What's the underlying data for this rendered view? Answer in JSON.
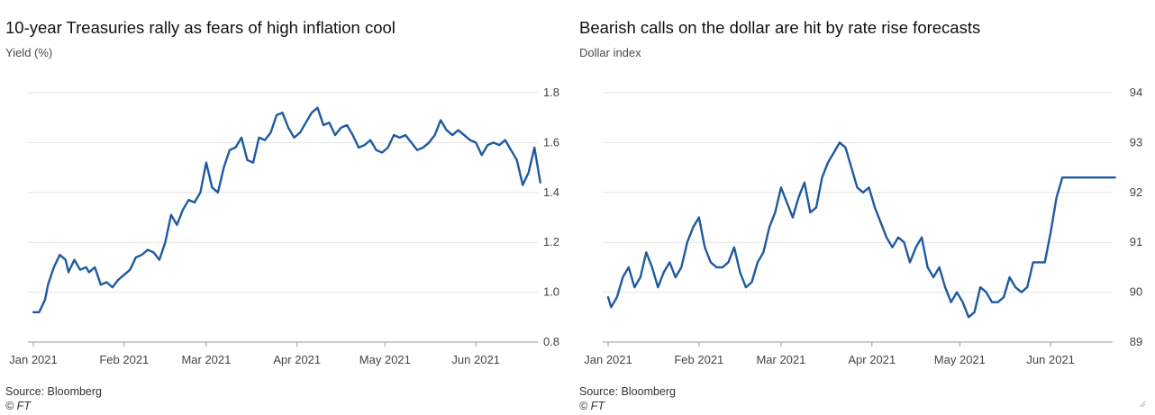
{
  "chart_data": [
    {
      "type": "line",
      "title": "10-year Treasuries rally as fears of high inflation cool",
      "ylabel": "Yield (%)",
      "ylim": [
        0.8,
        1.8
      ],
      "yticks": [
        "1.8",
        "1.6",
        "1.4",
        "1.2",
        "1.0",
        "0.8"
      ],
      "ytick_values": [
        1.8,
        1.6,
        1.4,
        1.2,
        1.0,
        0.8
      ],
      "xlim": [
        "2021-01-01",
        "2021-06-24"
      ],
      "xticks": [
        "Jan 2021",
        "Feb 2021",
        "Mar 2021",
        "Apr 2021",
        "May 2021",
        "Jun 2021"
      ],
      "xtick_dates": [
        "2021-01-01",
        "2021-02-01",
        "2021-03-01",
        "2021-04-01",
        "2021-05-01",
        "2021-06-01"
      ],
      "grid": true,
      "color": "#1f5aa0",
      "series": [
        {
          "x": [
            "2021-01-01",
            "2021-01-03",
            "2021-01-05",
            "2021-01-06",
            "2021-01-08",
            "2021-01-10",
            "2021-01-12",
            "2021-01-13",
            "2021-01-15",
            "2021-01-17",
            "2021-01-19",
            "2021-01-20",
            "2021-01-22",
            "2021-01-24",
            "2021-01-26",
            "2021-01-28",
            "2021-01-30",
            "2021-02-01",
            "2021-02-03",
            "2021-02-05",
            "2021-02-07",
            "2021-02-09",
            "2021-02-11",
            "2021-02-13",
            "2021-02-15",
            "2021-02-17",
            "2021-02-19",
            "2021-02-21",
            "2021-02-23",
            "2021-02-25",
            "2021-02-27",
            "2021-03-01",
            "2021-03-03",
            "2021-03-05",
            "2021-03-07",
            "2021-03-09",
            "2021-03-11",
            "2021-03-13",
            "2021-03-15",
            "2021-03-17",
            "2021-03-19",
            "2021-03-21",
            "2021-03-23",
            "2021-03-25",
            "2021-03-27",
            "2021-03-29",
            "2021-03-31",
            "2021-04-02",
            "2021-04-04",
            "2021-04-06",
            "2021-04-08",
            "2021-04-10",
            "2021-04-12",
            "2021-04-14",
            "2021-04-16",
            "2021-04-18",
            "2021-04-20",
            "2021-04-22",
            "2021-04-24",
            "2021-04-26",
            "2021-04-28",
            "2021-04-30",
            "2021-05-02",
            "2021-05-04",
            "2021-05-06",
            "2021-05-08",
            "2021-05-10",
            "2021-05-12",
            "2021-05-14",
            "2021-05-16",
            "2021-05-18",
            "2021-05-20",
            "2021-05-22",
            "2021-05-24",
            "2021-05-26",
            "2021-05-28",
            "2021-05-30",
            "2021-06-01",
            "2021-06-03",
            "2021-06-05",
            "2021-06-07",
            "2021-06-09",
            "2021-06-11",
            "2021-06-13",
            "2021-06-15",
            "2021-06-17",
            "2021-06-19",
            "2021-06-21",
            "2021-06-23"
          ],
          "values": [
            0.92,
            0.92,
            0.97,
            1.03,
            1.1,
            1.15,
            1.13,
            1.08,
            1.13,
            1.09,
            1.1,
            1.08,
            1.1,
            1.03,
            1.04,
            1.02,
            1.05,
            1.07,
            1.09,
            1.14,
            1.15,
            1.17,
            1.16,
            1.13,
            1.2,
            1.31,
            1.27,
            1.33,
            1.37,
            1.36,
            1.4,
            1.52,
            1.42,
            1.4,
            1.5,
            1.57,
            1.58,
            1.62,
            1.53,
            1.52,
            1.62,
            1.61,
            1.64,
            1.71,
            1.72,
            1.66,
            1.62,
            1.64,
            1.68,
            1.72,
            1.74,
            1.67,
            1.68,
            1.63,
            1.66,
            1.67,
            1.63,
            1.58,
            1.59,
            1.61,
            1.57,
            1.56,
            1.58,
            1.63,
            1.62,
            1.63,
            1.6,
            1.57,
            1.58,
            1.6,
            1.63,
            1.69,
            1.65,
            1.63,
            1.65,
            1.63,
            1.61,
            1.6,
            1.55,
            1.59,
            1.6,
            1.59,
            1.61,
            1.57,
            1.53,
            1.43,
            1.48,
            1.58,
            1.44
          ]
        }
      ],
      "source": "Source: Bloomberg",
      "credit": "© FT"
    },
    {
      "type": "line",
      "title": "Bearish calls on the dollar are hit by rate rise forecasts",
      "ylabel": "Dollar index",
      "ylim": [
        89,
        94
      ],
      "yticks": [
        "94",
        "93",
        "92",
        "91",
        "90",
        "89"
      ],
      "ytick_values": [
        94,
        93,
        92,
        91,
        90,
        89
      ],
      "xlim": [
        "2021-01-01",
        "2021-06-24"
      ],
      "xticks": [
        "Jan 2021",
        "Feb 2021",
        "Mar 2021",
        "Apr 2021",
        "May 2021",
        "Jun 2021"
      ],
      "xtick_dates": [
        "2021-01-01",
        "2021-02-01",
        "2021-03-01",
        "2021-04-01",
        "2021-05-01",
        "2021-06-01"
      ],
      "grid": true,
      "color": "#1f5aa0",
      "series": [
        {
          "x": [
            "2021-01-01",
            "2021-01-02",
            "2021-01-04",
            "2021-01-06",
            "2021-01-08",
            "2021-01-10",
            "2021-01-12",
            "2021-01-14",
            "2021-01-16",
            "2021-01-18",
            "2021-01-20",
            "2021-01-22",
            "2021-01-24",
            "2021-01-26",
            "2021-01-28",
            "2021-01-30",
            "2021-02-01",
            "2021-02-03",
            "2021-02-05",
            "2021-02-07",
            "2021-02-09",
            "2021-02-11",
            "2021-02-13",
            "2021-02-15",
            "2021-02-17",
            "2021-02-19",
            "2021-02-21",
            "2021-02-23",
            "2021-02-25",
            "2021-02-27",
            "2021-03-01",
            "2021-03-03",
            "2021-03-05",
            "2021-03-07",
            "2021-03-09",
            "2021-03-11",
            "2021-03-13",
            "2021-03-15",
            "2021-03-17",
            "2021-03-19",
            "2021-03-21",
            "2021-03-23",
            "2021-03-25",
            "2021-03-27",
            "2021-03-29",
            "2021-03-31",
            "2021-04-02",
            "2021-04-04",
            "2021-04-06",
            "2021-04-08",
            "2021-04-10",
            "2021-04-12",
            "2021-04-14",
            "2021-04-16",
            "2021-04-18",
            "2021-04-20",
            "2021-04-22",
            "2021-04-24",
            "2021-04-26",
            "2021-04-28",
            "2021-04-30",
            "2021-05-02",
            "2021-05-04",
            "2021-05-06",
            "2021-05-08",
            "2021-05-10",
            "2021-05-12",
            "2021-05-14",
            "2021-05-16",
            "2021-05-18",
            "2021-05-20",
            "2021-05-22",
            "2021-05-24",
            "2021-05-26",
            "2021-05-28",
            "2021-05-30",
            "2021-06-01",
            "2021-06-03",
            "2021-06-05",
            "2021-06-07",
            "2021-06-09",
            "2021-06-11",
            "2021-06-13",
            "2021-06-15",
            "2021-06-17",
            "2021-06-19",
            "2021-06-21",
            "2021-06-23"
          ],
          "values": [
            89.9,
            89.7,
            89.9,
            90.3,
            90.5,
            90.1,
            90.3,
            90.8,
            90.5,
            90.1,
            90.4,
            90.6,
            90.3,
            90.5,
            91.0,
            91.3,
            91.5,
            90.9,
            90.6,
            90.5,
            90.5,
            90.6,
            90.9,
            90.4,
            90.1,
            90.2,
            90.6,
            90.8,
            91.3,
            91.6,
            92.1,
            91.8,
            91.5,
            91.9,
            92.2,
            91.6,
            91.7,
            92.3,
            92.6,
            92.8,
            93.0,
            92.9,
            92.5,
            92.1,
            92.0,
            92.1,
            91.7,
            91.4,
            91.1,
            90.9,
            91.1,
            91.0,
            90.6,
            90.9,
            91.1,
            90.5,
            90.3,
            90.5,
            90.1,
            89.8,
            90.0,
            89.8,
            89.5,
            89.6,
            90.1,
            90.0,
            89.8,
            89.8,
            89.9,
            90.3,
            90.1,
            90.0,
            90.1,
            90.6,
            90.6,
            90.6,
            91.2,
            91.9,
            92.3,
            92.3,
            92.3,
            92.3,
            92.3,
            92.3,
            92.3,
            92.3,
            92.3,
            92.3
          ]
        }
      ],
      "source": "Source: Bloomberg",
      "credit": "© FT"
    }
  ],
  "resize_icon": "resize-grip-icon"
}
